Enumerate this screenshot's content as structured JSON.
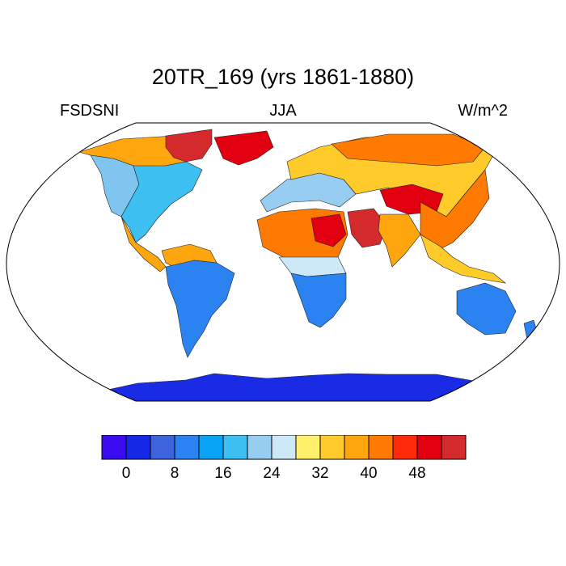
{
  "title": "20TR_169 (yrs 1861-1880)",
  "left_label": "FSDSNI",
  "center_label": "JJA",
  "right_label": "W/m^2",
  "colorbar": {
    "colors": [
      "#3a0df0",
      "#1528e6",
      "#3e63de",
      "#2b82f1",
      "#0aa4f6",
      "#3dbff1",
      "#97cdf0",
      "#cde8f7",
      "#fff06b",
      "#ffcb2b",
      "#ffa60f",
      "#ff7a00",
      "#ff2a08",
      "#e20010",
      "#d4292d"
    ],
    "labels": [
      "0",
      "8",
      "16",
      "24",
      "32",
      "40",
      "48"
    ]
  },
  "map_colors": {
    "ocean": "#ffffff",
    "antarctica": "#1a2be6",
    "na_north": "#ffa60f",
    "na_east": "#3dbff1",
    "na_west": "#7fc5f0",
    "greenland": "#e20010",
    "arctic": "#d4292d",
    "sa_north": "#ffa60f",
    "sa_main": "#2b82f1",
    "europe": "#97cdf0",
    "eurasia": "#ffcb2b",
    "sahara": "#ff7a00",
    "sahara_core": "#e20010",
    "arabia": "#d4292d",
    "tibet": "#e20010",
    "africa_south": "#2b82f1",
    "africa_sahel": "#cde8f7",
    "india": "#ffa60f",
    "se_asia": "#ffcb2b",
    "australia": "#2b82f1"
  }
}
